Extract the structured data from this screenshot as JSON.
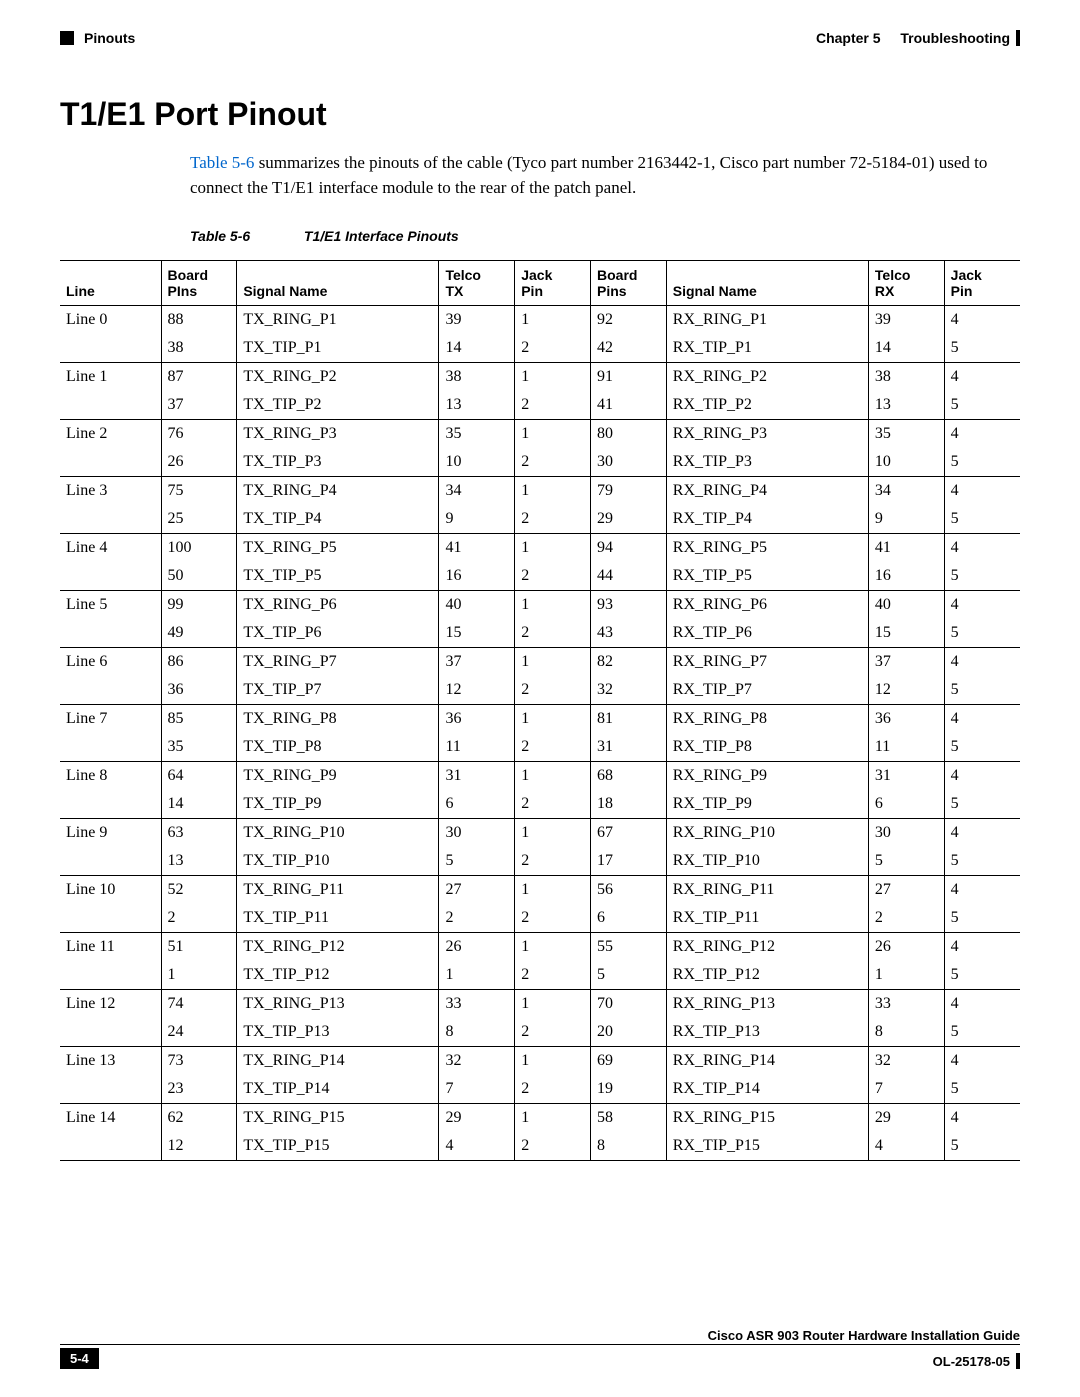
{
  "header": {
    "section_left": "Pinouts",
    "chapter_label": "Chapter 5",
    "chapter_title": "Troubleshooting"
  },
  "title": "T1/E1 Port Pinout",
  "intro": {
    "link_text": "Table 5-6",
    "rest": " summarizes the pinouts of the cable (Tyco part number 2163442-1, Cisco part number 72-5184-01) used to connect the T1/E1 interface module to the rear of the patch panel."
  },
  "table": {
    "caption_num": "Table 5-6",
    "caption_title": "T1/E1 Interface Pinouts",
    "columns": [
      "Line",
      "Board\nPIns",
      "Signal Name",
      "Telco\nTX",
      "Jack\nPin",
      "Board\nPins",
      "Signal Name",
      "Telco\nRX",
      "Jack\nPin"
    ],
    "rows": [
      [
        "Line 0",
        "88",
        "TX_RING_P1",
        "39",
        "1",
        "92",
        "RX_RING_P1",
        "39",
        "4"
      ],
      [
        "",
        "38",
        "TX_TIP_P1",
        "14",
        "2",
        "42",
        "RX_TIP_P1",
        "14",
        "5"
      ],
      [
        "Line 1",
        "87",
        "TX_RING_P2",
        "38",
        "1",
        "91",
        "RX_RING_P2",
        "38",
        "4"
      ],
      [
        "",
        "37",
        "TX_TIP_P2",
        "13",
        "2",
        "41",
        "RX_TIP_P2",
        "13",
        "5"
      ],
      [
        "Line 2",
        "76",
        "TX_RING_P3",
        "35",
        "1",
        "80",
        "RX_RING_P3",
        "35",
        "4"
      ],
      [
        "",
        "26",
        "TX_TIP_P3",
        "10",
        "2",
        "30",
        "RX_TIP_P3",
        "10",
        "5"
      ],
      [
        "Line 3",
        "75",
        "TX_RING_P4",
        "34",
        "1",
        "79",
        "RX_RING_P4",
        "34",
        "4"
      ],
      [
        "",
        "25",
        "TX_TIP_P4",
        "9",
        "2",
        "29",
        "RX_TIP_P4",
        "9",
        "5"
      ],
      [
        "Line 4",
        "100",
        "TX_RING_P5",
        "41",
        "1",
        "94",
        "RX_RING_P5",
        "41",
        "4"
      ],
      [
        "",
        "50",
        "TX_TIP_P5",
        "16",
        "2",
        "44",
        "RX_TIP_P5",
        "16",
        "5"
      ],
      [
        "Line 5",
        "99",
        "TX_RING_P6",
        "40",
        "1",
        "93",
        "RX_RING_P6",
        "40",
        "4"
      ],
      [
        "",
        "49",
        "TX_TIP_P6",
        "15",
        "2",
        "43",
        "RX_TIP_P6",
        "15",
        "5"
      ],
      [
        "Line 6",
        "86",
        "TX_RING_P7",
        "37",
        "1",
        "82",
        "RX_RING_P7",
        "37",
        "4"
      ],
      [
        "",
        "36",
        "TX_TIP_P7",
        "12",
        "2",
        "32",
        "RX_TIP_P7",
        "12",
        "5"
      ],
      [
        "Line 7",
        "85",
        "TX_RING_P8",
        "36",
        "1",
        "81",
        "RX_RING_P8",
        "36",
        "4"
      ],
      [
        "",
        "35",
        "TX_TIP_P8",
        "11",
        "2",
        "31",
        "RX_TIP_P8",
        "11",
        "5"
      ],
      [
        "Line 8",
        "64",
        "TX_RING_P9",
        "31",
        "1",
        "68",
        "RX_RING_P9",
        "31",
        "4"
      ],
      [
        "",
        "14",
        "TX_TIP_P9",
        "6",
        "2",
        "18",
        "RX_TIP_P9",
        "6",
        "5"
      ],
      [
        "Line 9",
        "63",
        "TX_RING_P10",
        "30",
        "1",
        "67",
        "RX_RING_P10",
        "30",
        "4"
      ],
      [
        "",
        "13",
        "TX_TIP_P10",
        "5",
        "2",
        "17",
        "RX_TIP_P10",
        "5",
        "5"
      ],
      [
        "Line 10",
        "52",
        "TX_RING_P11",
        "27",
        "1",
        "56",
        "RX_RING_P11",
        "27",
        "4"
      ],
      [
        "",
        "2",
        "TX_TIP_P11",
        "2",
        "2",
        "6",
        "RX_TIP_P11",
        "2",
        "5"
      ],
      [
        "Line 11",
        "51",
        "TX_RING_P12",
        "26",
        "1",
        "55",
        "RX_RING_P12",
        "26",
        "4"
      ],
      [
        "",
        "1",
        "TX_TIP_P12",
        "1",
        "2",
        "5",
        "RX_TIP_P12",
        "1",
        "5"
      ],
      [
        "Line 12",
        "74",
        "TX_RING_P13",
        "33",
        "1",
        "70",
        "RX_RING_P13",
        "33",
        "4"
      ],
      [
        "",
        "24",
        "TX_TIP_P13",
        "8",
        "2",
        "20",
        "RX_TIP_P13",
        "8",
        "5"
      ],
      [
        "Line 13",
        "73",
        "TX_RING_P14",
        "32",
        "1",
        "69",
        "RX_RING_P14",
        "32",
        "4"
      ],
      [
        "",
        "23",
        "TX_TIP_P14",
        "7",
        "2",
        "19",
        "RX_TIP_P14",
        "7",
        "5"
      ],
      [
        "Line 14",
        "62",
        "TX_RING_P15",
        "29",
        "1",
        "58",
        "RX_RING_P15",
        "29",
        "4"
      ],
      [
        "",
        "12",
        "TX_TIP_P15",
        "4",
        "2",
        "8",
        "RX_TIP_P15",
        "4",
        "5"
      ]
    ]
  },
  "footer": {
    "guide_title": "Cisco ASR 903 Router Hardware Installation Guide",
    "page_number": "5-4",
    "doc_number": "OL-25178-05"
  }
}
